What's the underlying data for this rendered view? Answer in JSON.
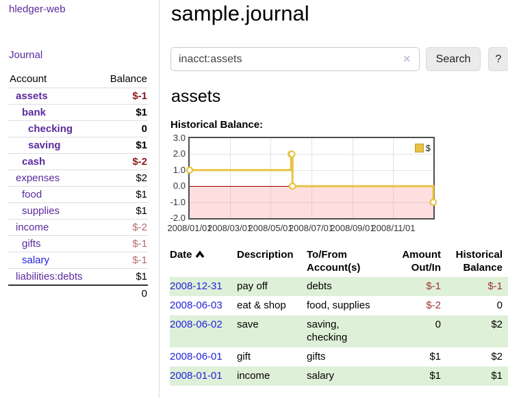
{
  "brand": "hledger-web",
  "nav": {
    "journal": "Journal"
  },
  "sidebar": {
    "columns": {
      "account": "Account",
      "balance": "Balance"
    },
    "accounts": [
      {
        "name": "assets",
        "level": 1,
        "bold": true,
        "link": "purple",
        "balance": "$-1",
        "balance_style": "neg-strong"
      },
      {
        "name": "bank",
        "level": 2,
        "bold": true,
        "link": "purple",
        "balance": "$1",
        "balance_style": "pos"
      },
      {
        "name": "checking",
        "level": 3,
        "bold": true,
        "link": "purple",
        "balance": "0",
        "balance_style": "pos"
      },
      {
        "name": "saving",
        "level": 3,
        "bold": true,
        "link": "purple",
        "balance": "$1",
        "balance_style": "pos"
      },
      {
        "name": "cash",
        "level": 2,
        "bold": true,
        "link": "purple",
        "balance": "$-2",
        "balance_style": "neg-strong"
      },
      {
        "name": "expenses",
        "level": 1,
        "bold": false,
        "link": "purple",
        "balance": "$2",
        "balance_style": "pos"
      },
      {
        "name": "food",
        "level": 2,
        "bold": false,
        "link": "purple",
        "balance": "$1",
        "balance_style": "pos"
      },
      {
        "name": "supplies",
        "level": 2,
        "bold": false,
        "link": "purple",
        "balance": "$1",
        "balance_style": "pos"
      },
      {
        "name": "income",
        "level": 1,
        "bold": false,
        "link": "purple",
        "balance": "$-2",
        "balance_style": "neg-soft"
      },
      {
        "name": "gifts",
        "level": 2,
        "bold": false,
        "link": "purple",
        "balance": "$-1",
        "balance_style": "neg-soft"
      },
      {
        "name": "salary",
        "level": 2,
        "bold": false,
        "link": "blue",
        "balance": "$-1",
        "balance_style": "neg-soft"
      },
      {
        "name": "liabilities:debts",
        "level": 1,
        "bold": false,
        "link": "purple",
        "balance": "$1",
        "balance_style": "pos"
      }
    ],
    "total": "0"
  },
  "header": {
    "title": "sample.journal"
  },
  "search": {
    "query": "inacct:assets",
    "clear_icon": "×",
    "button": "Search",
    "help": "?"
  },
  "account_view": {
    "heading": "assets",
    "chart_title": "Historical Balance:"
  },
  "chart_data": {
    "type": "line",
    "style": "step",
    "series": [
      {
        "name": "$",
        "color": "#e9c341",
        "points": [
          [
            "2008-01-01",
            1
          ],
          [
            "2008-06-01",
            2
          ],
          [
            "2008-06-02",
            2
          ],
          [
            "2008-06-03",
            0
          ],
          [
            "2008-12-31",
            -1
          ]
        ]
      }
    ],
    "xlim": [
      "2008-01-01",
      "2008-12-31"
    ],
    "ylim": [
      -2,
      3
    ],
    "yticks": [
      "3.0",
      "2.0",
      "1.0",
      "0.0",
      "-1.0",
      "-2.0"
    ],
    "xticks": [
      "2008/01/01",
      "2008/03/01",
      "2008/05/01",
      "2008/07/01",
      "2008/09/01",
      "2008/11/01"
    ],
    "legend_position": "top-right",
    "grid": true,
    "negative_region_color": "rgba(247,150,150,0.30)",
    "zero_line_color": "#8b0000"
  },
  "register": {
    "columns": {
      "date": "Date",
      "date_sort_icon": "chevron-up-icon",
      "description": "Description",
      "account": "To/From Account(s)",
      "amount": "Amount Out/In",
      "balance": "Historical Balance"
    },
    "rows": [
      {
        "date": "2008-12-31",
        "description": "pay off",
        "account": "debts",
        "amount": "$-1",
        "amount_style": "neg",
        "balance": "$-1",
        "balance_style": "neg"
      },
      {
        "date": "2008-06-03",
        "description": "eat & shop",
        "account": "food, supplies",
        "amount": "$-2",
        "amount_style": "neg",
        "balance": "0",
        "balance_style": "pos"
      },
      {
        "date": "2008-06-02",
        "description": "save",
        "account": "saving, checking",
        "amount": "0",
        "amount_style": "pos",
        "balance": "$2",
        "balance_style": "pos"
      },
      {
        "date": "2008-06-01",
        "description": "gift",
        "account": "gifts",
        "amount": "$1",
        "amount_style": "pos",
        "balance": "$2",
        "balance_style": "pos"
      },
      {
        "date": "2008-01-01",
        "description": "income",
        "account": "salary",
        "amount": "$1",
        "amount_style": "pos",
        "balance": "$1",
        "balance_style": "pos"
      }
    ]
  }
}
